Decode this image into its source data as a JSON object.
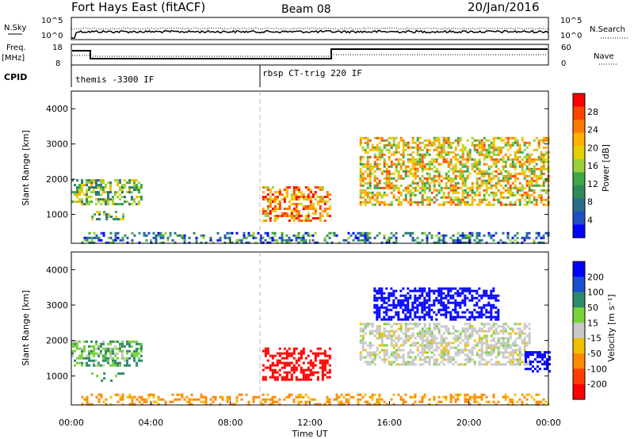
{
  "header": {
    "title": "Fort Hays East (fitACF)",
    "beam": "Beam 08",
    "date": "20/Jan/2016"
  },
  "top_panels": {
    "nsky_label": "N.Sky",
    "nsearch_label": "N.Search",
    "nsearch_ticks": [
      "10^5",
      "10^0"
    ],
    "nsky_ticks": [
      "10^5",
      "10^0"
    ],
    "freq_label": "Freq.",
    "freq_unit": "[MHz]",
    "freq_ticks": [
      "18",
      "8"
    ],
    "nave_label": "Nave",
    "nave_ticks": [
      "60",
      "0"
    ],
    "cpid_label": "CPID",
    "cpid_segments": [
      "themis -3300 IF",
      "rbsp CT-trig 220 IF"
    ]
  },
  "colorbars": {
    "power": {
      "label": "Power [dB]",
      "ticks": [
        "28",
        "24",
        "20",
        "16",
        "12",
        "8",
        "4"
      ],
      "colors": [
        "#ff0000",
        "#ff4400",
        "#ff7a00",
        "#ffb000",
        "#e6d000",
        "#9cd03a",
        "#3fa848",
        "#2e8b57",
        "#2a6e8a",
        "#1f4fc0",
        "#0000ff"
      ]
    },
    "velocity": {
      "label": "Velocity [m s⁻¹]",
      "ticks": [
        "200",
        "100",
        "50",
        "15",
        "-15",
        "-50",
        "-100",
        "-200"
      ],
      "colors": [
        "#0000ff",
        "#1a4fd0",
        "#2f8a6a",
        "#7ad23a",
        "#c8c8c8",
        "#f0c000",
        "#ff8a00",
        "#ff4000",
        "#ff0000"
      ]
    }
  },
  "axes": {
    "ylabel": "Slant Range [km]",
    "xlabel": "Time UT",
    "yticks": [
      "4000",
      "3000",
      "2000",
      "1000"
    ],
    "xticks": [
      "00:00",
      "04:00",
      "08:00",
      "12:00",
      "16:00",
      "20:00",
      "00:00"
    ]
  },
  "chart_data": [
    {
      "type": "heatmap",
      "name": "power",
      "x_range": [
        0,
        24
      ],
      "ylim": [
        180,
        4500
      ],
      "cpid_change_hour": 9.4,
      "nave_change_hour": 13.0,
      "regions": [
        {
          "t0": 0.0,
          "t1": 3.5,
          "r0": 1300,
          "r1": 2000,
          "level": 0.45
        },
        {
          "t0": 1.0,
          "t1": 2.6,
          "r0": 850,
          "r1": 1100,
          "level": 0.4
        },
        {
          "t0": 9.6,
          "t1": 13.0,
          "r0": 800,
          "r1": 1800,
          "level": 0.75
        },
        {
          "t0": 14.5,
          "t1": 24.0,
          "r0": 1300,
          "r1": 3200,
          "level": 0.6
        },
        {
          "t0": 0.5,
          "t1": 24.0,
          "r0": 200,
          "r1": 500,
          "level": 0.25
        }
      ]
    },
    {
      "type": "heatmap",
      "name": "velocity",
      "x_range": [
        0,
        24
      ],
      "ylim": [
        180,
        4500
      ],
      "regions": [
        {
          "t0": 0.0,
          "t1": 3.5,
          "r0": 1300,
          "r1": 2000,
          "vel": 30
        },
        {
          "t0": 1.0,
          "t1": 2.6,
          "r0": 850,
          "r1": 1100,
          "vel": 40
        },
        {
          "t0": 9.6,
          "t1": 13.0,
          "r0": 900,
          "r1": 1800,
          "vel": -200
        },
        {
          "t0": 15.2,
          "t1": 21.5,
          "r0": 2600,
          "r1": 3500,
          "vel": 200
        },
        {
          "t0": 14.5,
          "t1": 23.0,
          "r0": 1300,
          "r1": 2500,
          "vel": 0
        },
        {
          "t0": 22.8,
          "t1": 24.0,
          "r0": 1100,
          "r1": 1700,
          "vel": 180
        },
        {
          "t0": 0.5,
          "t1": 24.0,
          "r0": 200,
          "r1": 500,
          "vel": -40
        }
      ]
    }
  ]
}
